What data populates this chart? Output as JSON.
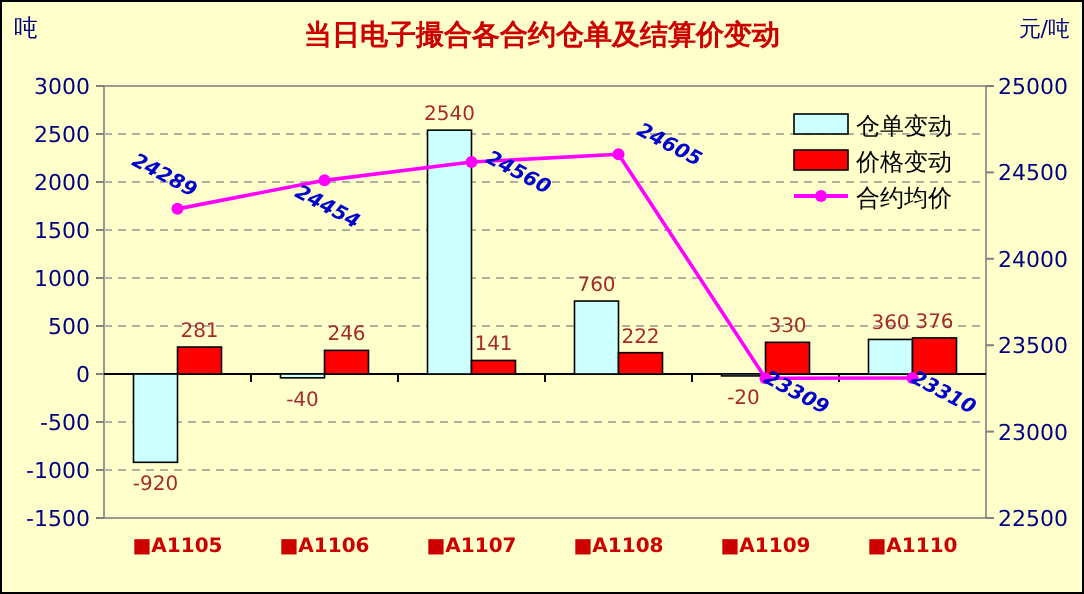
{
  "chart_data": {
    "type": "bar",
    "title": "当日电子撮合各合约仓单及结算价变动",
    "ylabel": "吨",
    "y2label": "元/吨",
    "categories": [
      "■A1105",
      "■A1106",
      "■A1107",
      "■A1108",
      "■A1109",
      "■A1110"
    ],
    "series": [
      {
        "name": "仓单变动",
        "color": "#ccffff",
        "values": [
          -920,
          -40,
          2540,
          760,
          -20,
          360
        ]
      },
      {
        "name": "价格变动",
        "color": "#ff0000",
        "values": [
          281,
          246,
          141,
          222,
          330,
          376
        ]
      },
      {
        "name": "合约均价",
        "type": "line",
        "axis": "y2",
        "marker": "circle",
        "color": "#ff00ff",
        "values": [
          24289,
          24454,
          24560,
          24605,
          23309,
          23310
        ]
      }
    ],
    "ylim": [
      -1500,
      3000
    ],
    "yticks": [
      -1500,
      -1000,
      -500,
      0,
      500,
      1000,
      1500,
      2000,
      2500,
      3000
    ],
    "y2lim": [
      22500,
      25000
    ],
    "y2ticks": [
      22500,
      23000,
      23500,
      24000,
      24500,
      25000
    ],
    "grid": "y",
    "legend": "top right",
    "data_labels": true
  }
}
